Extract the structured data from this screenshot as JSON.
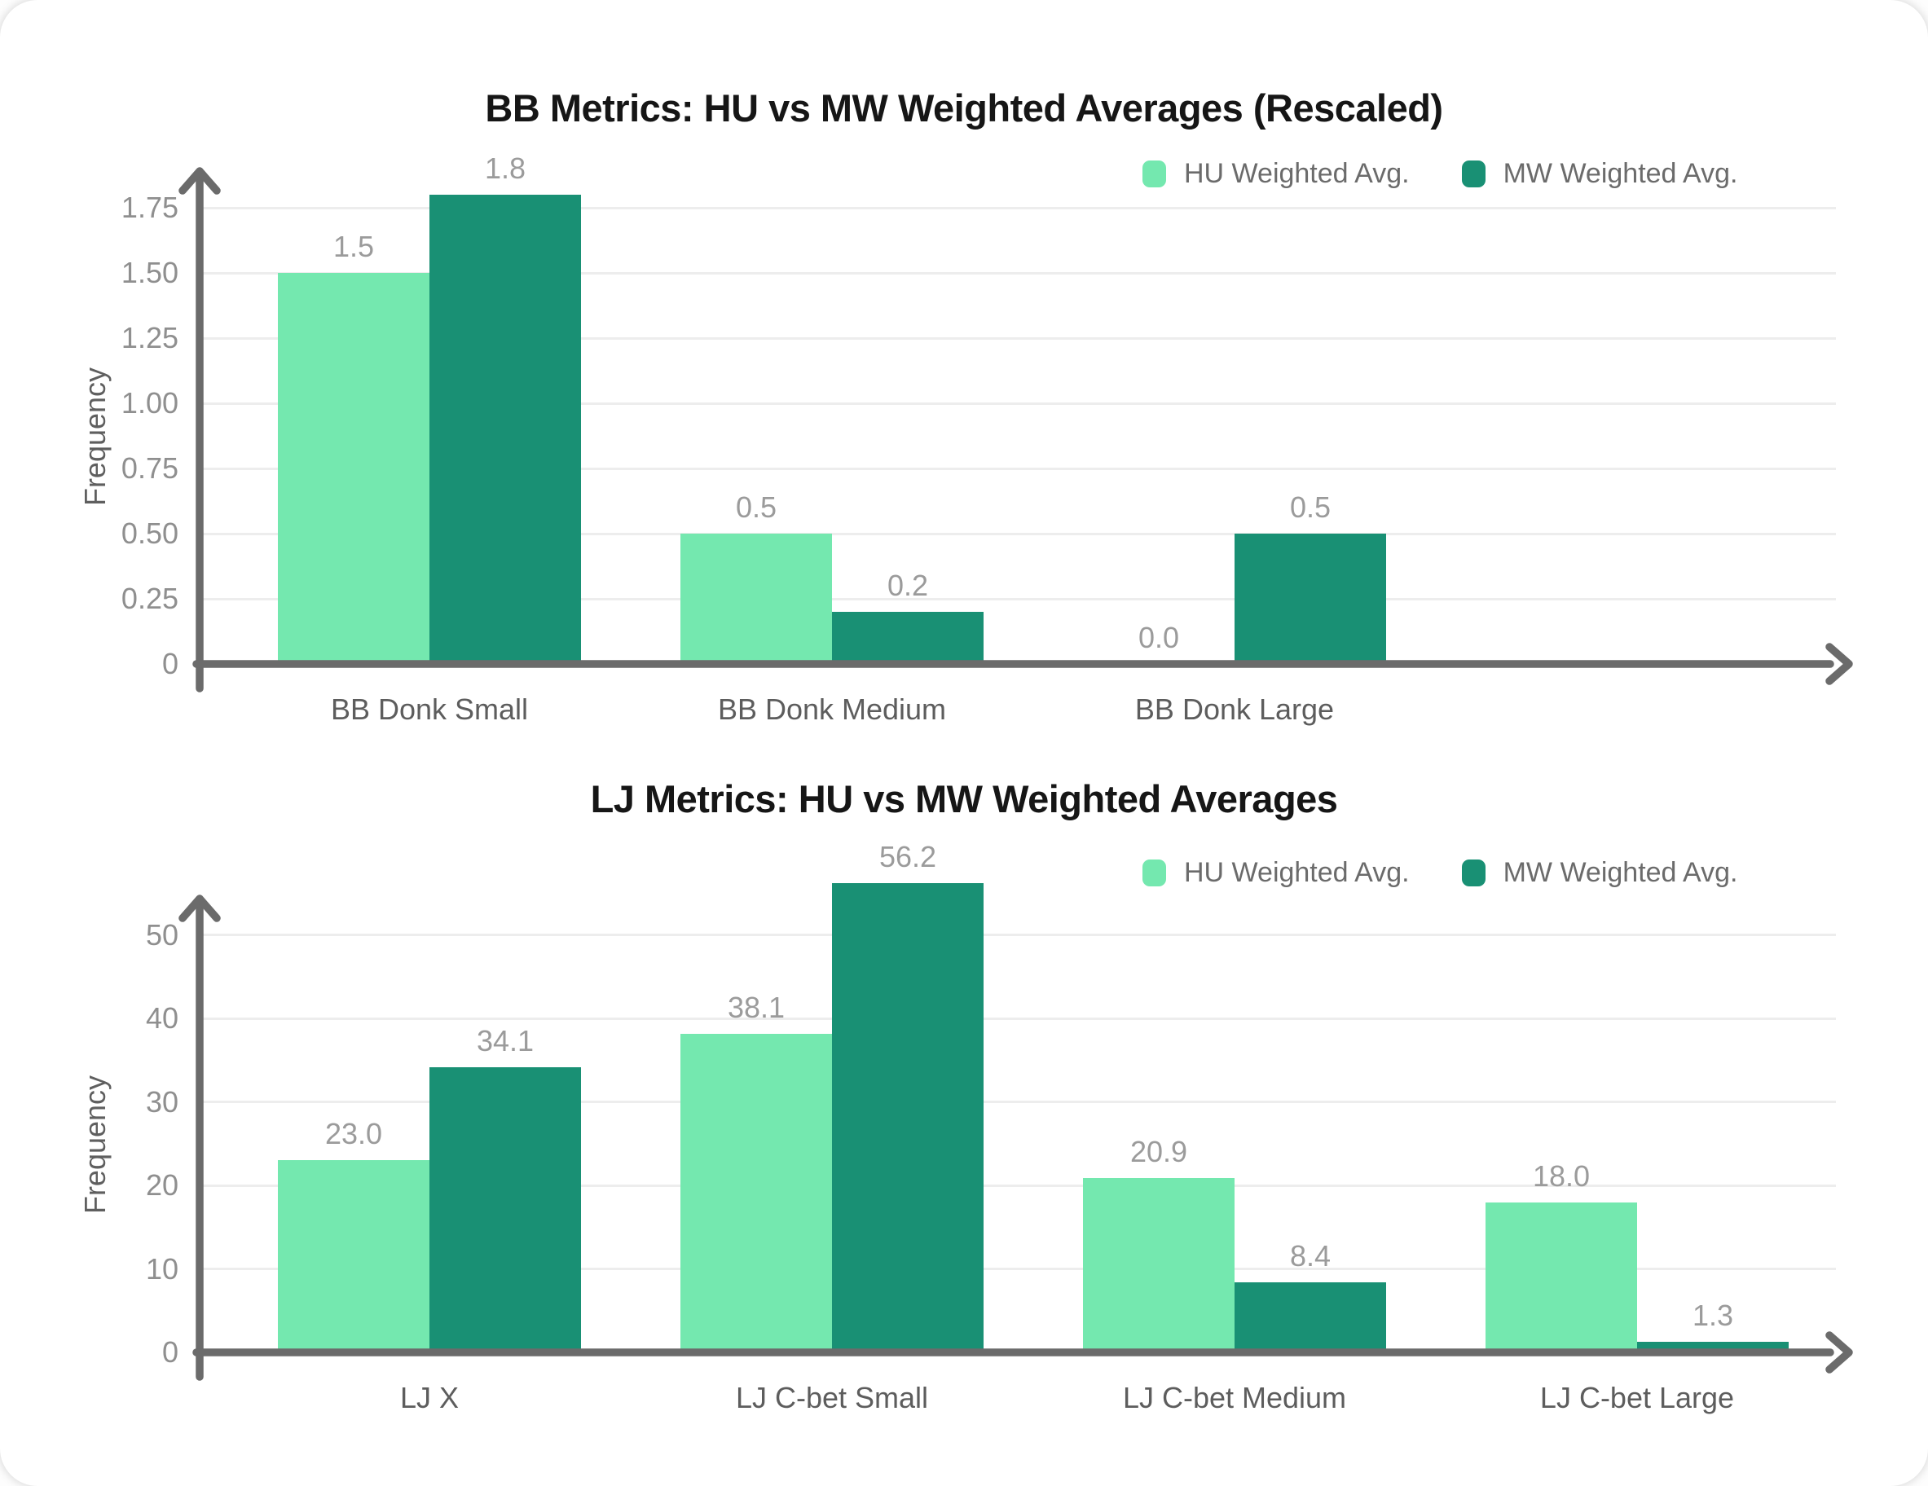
{
  "card": {
    "background": "#ffffff"
  },
  "palette": {
    "hu": "#74E8AF",
    "mw": "#199074",
    "axis": "#6b6b6b",
    "grid": "#ededed",
    "title_text": "#161616",
    "tick_text": "#8f8f8f",
    "value_text": "#9b9b9b",
    "category_text": "#5d5d5d",
    "legend_text": "#6b6b6b"
  },
  "chart_data": [
    {
      "type": "bar",
      "title": "BB Metrics: HU vs MW Weighted Averages (Rescaled)",
      "xlabel": "",
      "ylabel": "Frequency",
      "grid": true,
      "legend_position": "top-right",
      "ylim": [
        0,
        1.9
      ],
      "categories": [
        "BB Donk Small",
        "BB Donk Medium",
        "BB Donk Large"
      ],
      "series": [
        {
          "name": "HU Weighted Avg.",
          "color": "#74E8AF",
          "values": [
            1.5,
            0.5,
            0.0
          ],
          "value_labels": [
            "1.5",
            "0.5",
            "0.0"
          ]
        },
        {
          "name": "MW Weighted Avg.",
          "color": "#199074",
          "values": [
            1.8,
            0.2,
            0.5
          ],
          "value_labels": [
            "1.8",
            "0.2",
            "0.5"
          ]
        }
      ],
      "yticks": {
        "values": [
          0,
          0.25,
          0.5,
          0.75,
          1.0,
          1.25,
          1.5,
          1.75
        ],
        "labels": [
          "0",
          "0.25",
          "0.50",
          "0.75",
          "1.00",
          "1.25",
          "1.50",
          "1.75"
        ]
      }
    },
    {
      "type": "bar",
      "title": "LJ Metrics: HU vs MW Weighted Averages",
      "xlabel": "",
      "ylabel": "Frequency",
      "grid": true,
      "legend_position": "top-right",
      "ylim": [
        0,
        60
      ],
      "categories": [
        "LJ X",
        "LJ C-bet Small",
        "LJ C-bet Medium",
        "LJ C-bet Large"
      ],
      "series": [
        {
          "name": "HU Weighted Avg.",
          "color": "#74E8AF",
          "values": [
            23.0,
            38.1,
            20.9,
            18.0
          ],
          "value_labels": [
            "23.0",
            "38.1",
            "20.9",
            "18.0"
          ]
        },
        {
          "name": "MW Weighted Avg.",
          "color": "#199074",
          "values": [
            34.1,
            56.2,
            8.4,
            1.3
          ],
          "value_labels": [
            "34.1",
            "56.2",
            "8.4",
            "1.3"
          ]
        }
      ],
      "yticks": {
        "values": [
          0,
          10,
          20,
          30,
          40,
          50
        ],
        "labels": [
          "0",
          "10",
          "20",
          "30",
          "40",
          "50"
        ]
      }
    }
  ]
}
